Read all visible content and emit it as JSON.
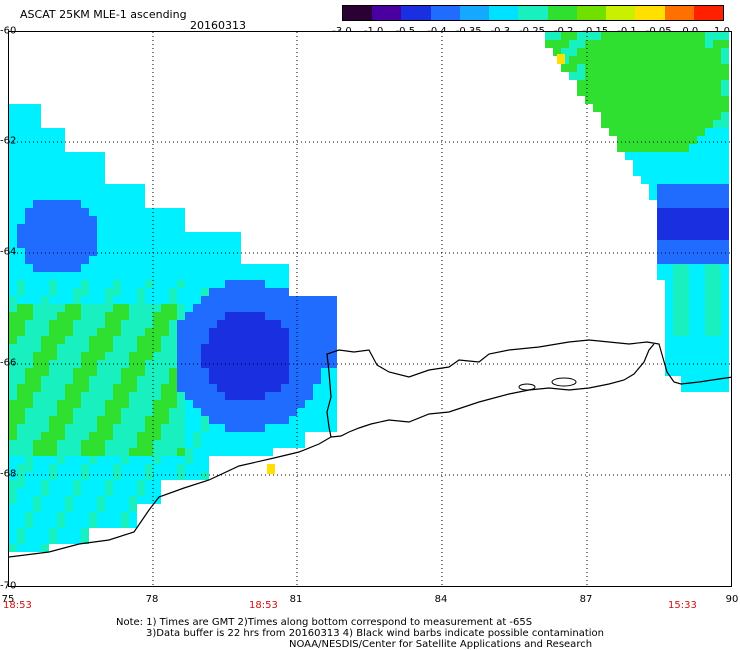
{
  "header": {
    "title": "ASCAT 25KM MLE-1 ascending",
    "date": "20160313"
  },
  "colorbar": {
    "labels": [
      "-3.0",
      "-1.0",
      "-0.5",
      "-0.4",
      "-0.35",
      "-0.3",
      "-0.25",
      "-0.2",
      "-0.15",
      "-0.1",
      "-0.05",
      "0.0",
      "1.0"
    ],
    "colors": [
      "#2b0033",
      "#4a00a0",
      "#1a30e0",
      "#1f6cff",
      "#14a8ff",
      "#00e0ff",
      "#18f0c0",
      "#30e030",
      "#70e000",
      "#c8f000",
      "#ffe000",
      "#ff7000",
      "#ff2000"
    ]
  },
  "axes": {
    "lat_labels": [
      "-60",
      "-62",
      "-64",
      "-66",
      "-68",
      "-70"
    ],
    "lon_labels": [
      "75",
      "78",
      "81",
      "84",
      "87",
      "90"
    ],
    "time_labels": [
      "18:53",
      "18:53",
      "15:33"
    ]
  },
  "notes": {
    "line1": "Note: 1) Times are GMT 2)Times along bottom correspond to measurement at -65S",
    "line2": "3)Data buffer is 22 hrs from 20160313 4) Black wind barbs indicate possible contamination",
    "line3": "NOAA/NESDIS/Center for Satellite Applications and Research"
  },
  "map_colors": {
    "cyan": "#00f0ff",
    "green": "#30e030",
    "blue": "#1f6cff",
    "deep_blue": "#1a30e0",
    "aqua": "#18f0c0",
    "yellow": "#ffe000"
  }
}
